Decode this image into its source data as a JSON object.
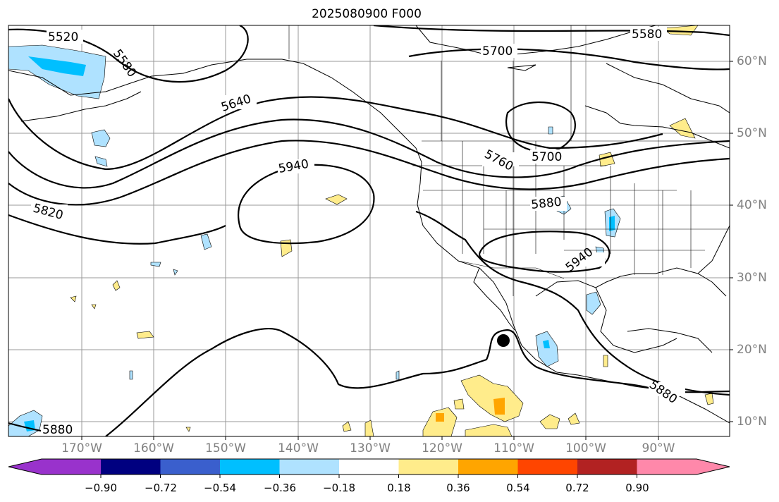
{
  "title": "2025080900 F000",
  "contour_labels": [
    "5520",
    "5580",
    "5580",
    "5700",
    "5640",
    "5940",
    "5820",
    "5760",
    "5700",
    "5880",
    "5940",
    "5880",
    "5880"
  ],
  "lon_labels": [
    "170°W",
    "160°W",
    "150°W",
    "140°W",
    "130°W",
    "120°W",
    "110°W",
    "100°W",
    "90°W"
  ],
  "lat_labels": [
    "60°N",
    "50°N",
    "40°N",
    "30°N",
    "20°N",
    "10°N"
  ],
  "colorbar": {
    "ticks": [
      "−0.90",
      "−0.72",
      "−0.54",
      "−0.36",
      "−0.18",
      "0.18",
      "0.36",
      "0.54",
      "0.72",
      "0.90"
    ],
    "colors": [
      "#9932cc",
      "#000080",
      "#3a5fcd",
      "#00bfff",
      "#afe2ff",
      "#ffffff",
      "#ffec8b",
      "#ffa500",
      "#ff4500",
      "#b22222",
      "#ff88aa"
    ]
  },
  "fill_colors": {
    "light_blue": "#afe2ff",
    "blue": "#00bfff",
    "yellow": "#ffec8b",
    "orange": "#ffa500"
  }
}
